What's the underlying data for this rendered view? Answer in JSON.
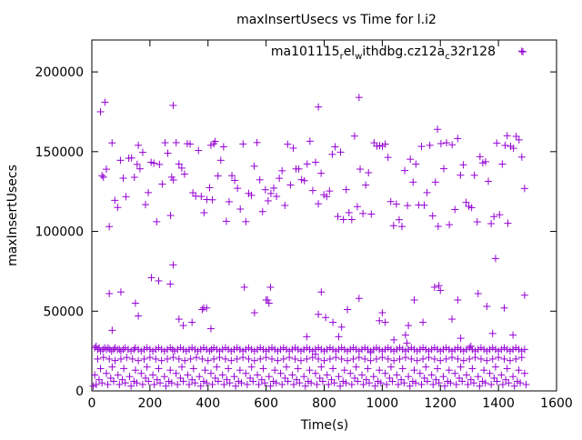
{
  "chart_data": {
    "type": "scatter",
    "title": "maxInsertUsecs vs Time for l.i2",
    "xlabel": "Time(s)",
    "ylabel": "maxInsertUsecs",
    "xlim": [
      0,
      1600
    ],
    "ylim": [
      0,
      220000
    ],
    "xticks": [
      0,
      200,
      400,
      600,
      800,
      1000,
      1200,
      1400,
      1600
    ],
    "yticks": [
      0,
      50000,
      100000,
      150000,
      200000
    ],
    "grid": false,
    "legend_position": "top-right",
    "marker": "plus",
    "series": [
      {
        "name": "ma101115_rel_withdbg.cz12a_c32r128",
        "legend_parts": [
          {
            "text": "ma101115",
            "sub": false
          },
          {
            "text": "r",
            "sub": true
          },
          {
            "text": "el",
            "sub": false
          },
          {
            "text": "w",
            "sub": true
          },
          {
            "text": "ithdbg.cz12a",
            "sub": false
          },
          {
            "text": "c",
            "sub": true
          },
          {
            "text": "32r128",
            "sub": false
          }
        ],
        "color": "#9400d3",
        "x": [
          5,
          10,
          15,
          20,
          25,
          30,
          38,
          44,
          50,
          56,
          62,
          68,
          75,
          80,
          88,
          95,
          100,
          108,
          115,
          125,
          135,
          145,
          150,
          160,
          170,
          180,
          190,
          200,
          210,
          220,
          230,
          240,
          250,
          260,
          270,
          278,
          285,
          295,
          305,
          315,
          325,
          335,
          345,
          355,
          365,
          375,
          385,
          395,
          405,
          412,
          420,
          430,
          440,
          450,
          460,
          470,
          480,
          490,
          500,
          510,
          520,
          530,
          540,
          550,
          560,
          570,
          580,
          590,
          600,
          610,
          620,
          630,
          640,
          650,
          660,
          670,
          680,
          690,
          700,
          710,
          720,
          730,
          740,
          750,
          760,
          770,
          780,
          790,
          800,
          810,
          820,
          830,
          840,
          850,
          860,
          870,
          880,
          890,
          900,
          910,
          920,
          930,
          940,
          950,
          960,
          970,
          980,
          990,
          1000,
          1010,
          1020,
          1030,
          1040,
          1050,
          1060,
          1070,
          1080,
          1090,
          1100,
          1110,
          1120,
          1130,
          1140,
          1150,
          1160,
          1170,
          1180,
          1190,
          1200,
          1210,
          1220,
          1230,
          1240,
          1250,
          1260,
          1270,
          1280,
          1290,
          1300,
          1310,
          1320,
          1330,
          1340,
          1350,
          1360,
          1370,
          1380,
          1390,
          1400,
          1410,
          1420,
          1430,
          1440,
          1450,
          1460,
          1470,
          1480,
          1490,
          20,
          40,
          60,
          80,
          100,
          120,
          140,
          160,
          180,
          200,
          220,
          240,
          260,
          280,
          300,
          320,
          340,
          360,
          380,
          400,
          420,
          440,
          460,
          480,
          500,
          520,
          540,
          560,
          580,
          600,
          620,
          640,
          660,
          680,
          700,
          720,
          740,
          760,
          780,
          800,
          820,
          840,
          860,
          880,
          900,
          920,
          940,
          960,
          980,
          1000,
          1020,
          1040,
          1060,
          1080,
          1100,
          1120,
          1140,
          1160,
          1180,
          1200,
          1220,
          1240,
          1260,
          1280,
          1300,
          1320,
          1340,
          1360,
          1380,
          1400,
          1420,
          1440,
          1460,
          1480,
          15,
          35,
          55,
          75,
          95,
          115,
          135,
          155,
          175,
          195,
          215,
          235,
          255,
          275,
          295,
          315,
          335,
          355,
          375,
          395,
          415,
          435,
          455,
          475,
          495,
          515,
          535,
          555,
          575,
          595,
          615,
          635,
          655,
          675,
          695,
          715,
          735,
          755,
          775,
          795,
          815,
          835,
          855,
          875,
          895,
          915,
          935,
          955,
          975,
          995,
          1015,
          1035,
          1055,
          1075,
          1095,
          1115,
          1135,
          1155,
          1175,
          1195,
          1215,
          1235,
          1255,
          1275,
          1295,
          1315,
          1335,
          1355,
          1375,
          1395,
          1415,
          1435,
          1455,
          1475,
          1495,
          10,
          50,
          90,
          130,
          170,
          210,
          250,
          290,
          330,
          370,
          410,
          450,
          490,
          530,
          570,
          610,
          650,
          690,
          730,
          770,
          810,
          850,
          890,
          930,
          970,
          1010,
          1050,
          1090,
          1130,
          1170,
          1210,
          1250,
          1290,
          1330,
          1370,
          1410,
          1450,
          1490,
          30,
          70,
          110,
          150,
          190,
          230,
          270,
          310,
          350,
          390,
          430,
          470,
          510,
          550,
          590,
          630,
          670,
          710,
          750,
          790,
          830,
          870,
          910,
          950,
          990,
          1030,
          1070,
          1110,
          1150,
          1190,
          1230,
          1270,
          1310,
          1350,
          1390,
          1430,
          1470,
          25,
          65,
          105,
          145,
          185,
          225,
          265,
          305,
          345,
          385,
          425,
          465,
          505,
          545,
          585,
          625,
          665,
          705,
          745,
          785,
          825,
          865,
          905,
          945,
          985,
          1025,
          1065,
          1105,
          1145,
          1185,
          1225,
          1265,
          1305,
          1345,
          1385,
          1425,
          1465,
          30,
          45,
          60,
          70,
          100,
          150,
          160,
          205,
          230,
          270,
          280,
          300,
          315,
          345,
          380,
          385,
          395,
          410,
          525,
          560,
          600,
          605,
          610,
          615,
          740,
          770,
          780,
          790,
          805,
          830,
          850,
          860,
          880,
          920,
          960,
          990,
          1000,
          1010,
          1040,
          1080,
          1085,
          1090,
          1110,
          1140,
          1180,
          1195,
          1200,
          1240,
          1260,
          1270,
          1305,
          1330,
          1360,
          1380,
          1390,
          1420,
          1450,
          1490,
          35,
          40,
          50,
          160,
          275,
          280,
          410,
          420,
          780,
          920,
          1190,
          1430,
          1480
        ],
        "y": [
          3000,
          27000,
          28000,
          26000,
          27000,
          25000,
          26000,
          27000,
          26000,
          27000,
          26000,
          25000,
          26000,
          27000,
          26000,
          26000,
          25000,
          26000,
          27000,
          26000,
          25000,
          26000,
          27000,
          26000,
          25000,
          26000,
          27000,
          26000,
          25000,
          26000,
          27000,
          26000,
          25000,
          26000,
          27000,
          26000,
          25000,
          26000,
          27000,
          26000,
          25000,
          26000,
          27000,
          26000,
          25000,
          26000,
          27000,
          26000,
          25000,
          26000,
          27000,
          26000,
          25000,
          26000,
          27000,
          26000,
          25000,
          26000,
          27000,
          26000,
          25000,
          26000,
          27000,
          26000,
          25000,
          26000,
          27000,
          26000,
          25000,
          26000,
          27000,
          26000,
          25000,
          26000,
          27000,
          26000,
          25000,
          26000,
          27000,
          26000,
          25000,
          26000,
          27000,
          26000,
          25000,
          26000,
          27000,
          26000,
          25000,
          26000,
          27000,
          26000,
          25000,
          26000,
          27000,
          26000,
          25000,
          26000,
          27000,
          26000,
          25000,
          26000,
          27000,
          26000,
          25000,
          26000,
          27000,
          26000,
          25000,
          26000,
          27000,
          26000,
          25000,
          26000,
          27000,
          26000,
          25000,
          26000,
          27000,
          26000,
          25000,
          26000,
          27000,
          26000,
          25000,
          26000,
          27000,
          26000,
          25000,
          26000,
          27000,
          26000,
          25000,
          26000,
          27000,
          26000,
          25000,
          26000,
          27000,
          26000,
          25000,
          26000,
          27000,
          26000,
          25000,
          26000,
          27000,
          26000,
          25000,
          26000,
          27000,
          26000,
          25000,
          26000,
          27000,
          26000,
          25000,
          26000,
          20000,
          21000,
          20000,
          19000,
          20000,
          21000,
          20000,
          19000,
          20000,
          21000,
          20000,
          19000,
          20000,
          21000,
          20000,
          19000,
          20000,
          21000,
          20000,
          19000,
          20000,
          21000,
          20000,
          19000,
          20000,
          21000,
          20000,
          19000,
          20000,
          21000,
          20000,
          19000,
          20000,
          21000,
          20000,
          19000,
          20000,
          21000,
          20000,
          19000,
          20000,
          21000,
          20000,
          19000,
          20000,
          21000,
          20000,
          19000,
          20000,
          21000,
          20000,
          19000,
          20000,
          21000,
          20000,
          19000,
          20000,
          21000,
          20000,
          19000,
          20000,
          21000,
          20000,
          19000,
          20000,
          21000,
          20000,
          19000,
          20000,
          21000,
          20000,
          19000,
          20000,
          21000,
          4000,
          5000,
          4000,
          6000,
          4000,
          5000,
          3000,
          5000,
          4000,
          6000,
          4000,
          5000,
          3000,
          5000,
          4000,
          6000,
          4000,
          5000,
          3000,
          5000,
          4000,
          6000,
          4000,
          5000,
          3000,
          5000,
          4000,
          6000,
          4000,
          5000,
          3000,
          5000,
          4000,
          6000,
          4000,
          5000,
          3000,
          5000,
          4000,
          6000,
          4000,
          5000,
          3000,
          5000,
          4000,
          6000,
          4000,
          5000,
          3000,
          5000,
          4000,
          6000,
          4000,
          5000,
          3000,
          5000,
          4000,
          6000,
          4000,
          5000,
          3000,
          5000,
          4000,
          6000,
          4000,
          5000,
          3000,
          5000,
          4000,
          6000,
          4000,
          5000,
          3000,
          5000,
          4000,
          10000,
          11000,
          10000,
          9000,
          11000,
          10000,
          9000,
          11000,
          10000,
          9000,
          11000,
          10000,
          9000,
          11000,
          10000,
          9000,
          11000,
          10000,
          9000,
          11000,
          10000,
          9000,
          11000,
          10000,
          9000,
          11000,
          10000,
          9000,
          11000,
          10000,
          9000,
          11000,
          10000,
          9000,
          11000,
          10000,
          9000,
          11000,
          14000,
          15000,
          14000,
          13000,
          15000,
          14000,
          13000,
          15000,
          14000,
          13000,
          15000,
          14000,
          13000,
          15000,
          14000,
          13000,
          15000,
          14000,
          13000,
          15000,
          14000,
          13000,
          15000,
          14000,
          13000,
          15000,
          14000,
          13000,
          15000,
          14000,
          13000,
          15000,
          14000,
          13000,
          15000,
          14000,
          13000,
          7000,
          8000,
          7000,
          6000,
          8000,
          7000,
          6000,
          8000,
          7000,
          6000,
          8000,
          7000,
          6000,
          8000,
          7000,
          6000,
          8000,
          7000,
          6000,
          8000,
          7000,
          6000,
          8000,
          7000,
          6000,
          8000,
          7000,
          6000,
          8000,
          7000,
          6000,
          8000,
          7000,
          6000,
          8000,
          7000,
          6000,
          175000,
          181000,
          61000,
          38000,
          62000,
          55000,
          47000,
          71000,
          69000,
          67000,
          79000,
          45000,
          41000,
          43000,
          51000,
          52000,
          52000,
          39000,
          65000,
          49000,
          57000,
          57000,
          55000,
          65000,
          34000,
          23000,
          48000,
          62000,
          46000,
          43000,
          34000,
          40000,
          51000,
          58000,
          24000,
          44000,
          49000,
          43000,
          32000,
          35000,
          30000,
          41000,
          57000,
          43000,
          65000,
          66000,
          63000,
          45000,
          57000,
          33000,
          28000,
          61000,
          53000,
          36000,
          83000,
          52000,
          35000,
          60000,
          135000,
          134000,
          139000,
          154000,
          134000,
          179000,
          154000,
          155000,
          178000,
          184000,
          164000,
          160000,
          213000
        ],
        "cluster": {
          "x_from": 60,
          "x_to": 1490,
          "count": 150,
          "y_low": 103000,
          "y_high": 160000
        }
      }
    ]
  }
}
